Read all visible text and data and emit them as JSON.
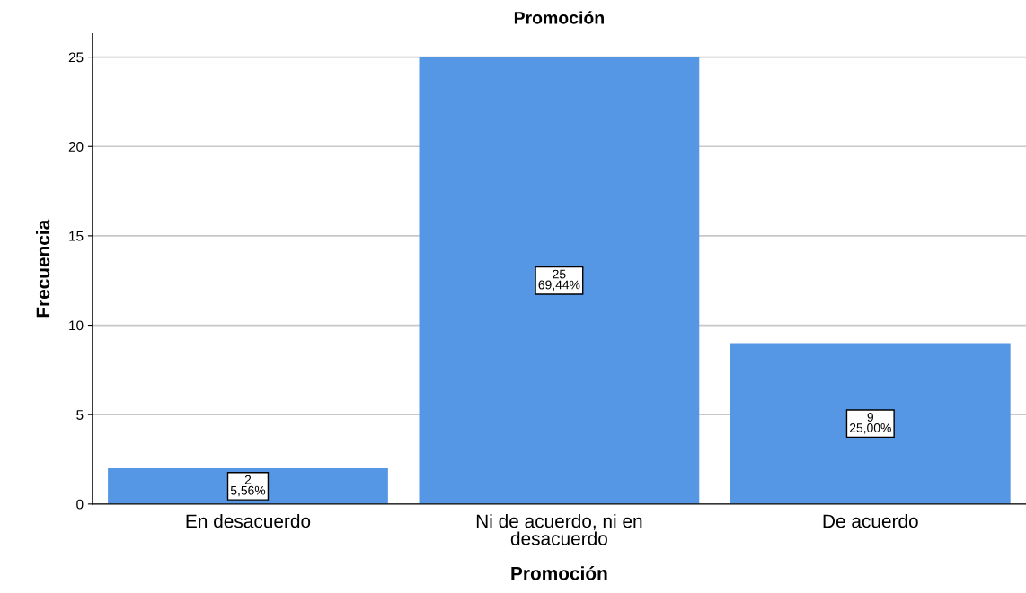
{
  "chart_data": {
    "type": "bar",
    "title": "Promoción",
    "xlabel": "Promoción",
    "ylabel": "Frecuencia",
    "categories": [
      "En desacuerdo",
      "Ni de acuerdo, ni en desacuerdo",
      "De acuerdo"
    ],
    "values": [
      2,
      25,
      9
    ],
    "color": "#5596e5",
    "value_labels": [
      "2\n5,56%",
      "25\n69,44%",
      "9\n25,00%"
    ],
    "ylim": [
      0,
      26.3
    ],
    "yticks": [
      0,
      5,
      10,
      15,
      20,
      25
    ],
    "grid": "y"
  }
}
